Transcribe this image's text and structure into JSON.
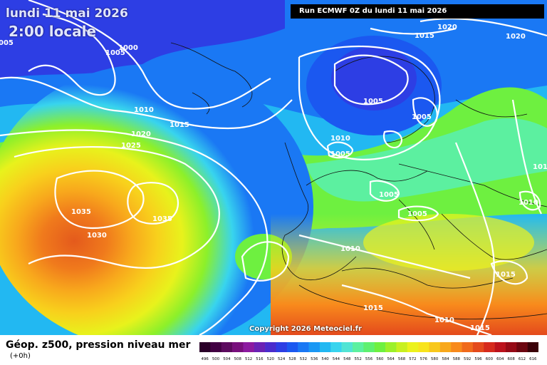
{
  "header": {
    "date_label": "lundi 11 mai 2026",
    "time_label": "2:00 locale",
    "run_label": "Run ECMWF 0Z du lundi 11 mai 2026"
  },
  "footer": {
    "copyright": "Copyright 2026 Meteociel.fr",
    "legend_title": "Géop. z500, pression niveau mer",
    "legend_sub": "(+0h)"
  },
  "scale_ticks": [
    "496",
    "500",
    "504",
    "508",
    "512",
    "516",
    "520",
    "524",
    "528",
    "532",
    "536",
    "540",
    "544",
    "548",
    "552",
    "556",
    "560",
    "564",
    "568",
    "572",
    "576",
    "580",
    "584",
    "588",
    "592",
    "596",
    "600",
    "604",
    "608",
    "612",
    "616"
  ],
  "scale_colors": [
    "#2a0029",
    "#420042",
    "#5c0a5e",
    "#780f7c",
    "#8c1aa0",
    "#6a22b4",
    "#4a2ccc",
    "#2d3ee4",
    "#1b58f0",
    "#1a78f4",
    "#1a98f4",
    "#22b8f2",
    "#38d4ee",
    "#52e4d4",
    "#5cf0a0",
    "#5ef070",
    "#6ef040",
    "#9cf02a",
    "#c8f020",
    "#ecf21c",
    "#f8e41c",
    "#f8c81c",
    "#f8a81c",
    "#f88a1c",
    "#f06a1c",
    "#e44a1c",
    "#d62a1c",
    "#bc121c",
    "#960a16",
    "#6c0610",
    "#3a0008"
  ],
  "isobar_labels": [
    {
      "text": "005"
    },
    {
      "text": "1005"
    },
    {
      "text": "1000"
    },
    {
      "text": "1010"
    },
    {
      "text": "1015"
    },
    {
      "text": "1020"
    },
    {
      "text": "1025"
    },
    {
      "text": "1035"
    },
    {
      "text": "1035"
    },
    {
      "text": "1030"
    },
    {
      "text": "1020"
    },
    {
      "text": "1015"
    },
    {
      "text": "1020"
    },
    {
      "text": "1005"
    },
    {
      "text": "1005"
    },
    {
      "text": "1010"
    },
    {
      "text": "1005"
    },
    {
      "text": "1005"
    },
    {
      "text": "1005"
    },
    {
      "text": "1010"
    },
    {
      "text": "1010"
    },
    {
      "text": "101"
    },
    {
      "text": "1015"
    },
    {
      "text": "1015"
    },
    {
      "text": "1010"
    },
    {
      "text": "1015"
    }
  ]
}
